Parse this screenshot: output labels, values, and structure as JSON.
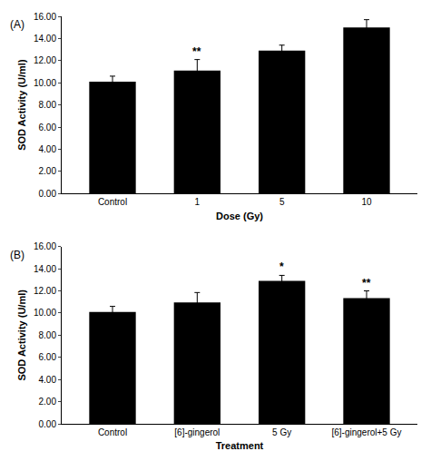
{
  "chart_data": [
    {
      "type": "bar",
      "label": "(A)",
      "x_label": "Dose (Gy)",
      "y_label": "SOD Activity (U/ml)",
      "categories": [
        "Control",
        "1",
        "5",
        "10"
      ],
      "values": [
        10.1,
        11.1,
        12.9,
        15.0
      ],
      "errors": [
        0.5,
        1.0,
        0.5,
        0.7
      ],
      "color": "#000000",
      "ylim": [
        0,
        16
      ],
      "yticks": [
        {
          "value": 0,
          "label": "0.00"
        },
        {
          "value": 2,
          "label": "2.00"
        },
        {
          "value": 4,
          "label": "4.00"
        },
        {
          "value": 6,
          "label": "6.00"
        },
        {
          "value": 8,
          "label": "8.00"
        },
        {
          "value": 10,
          "label": "10.00"
        },
        {
          "value": 12,
          "label": "12.00"
        },
        {
          "value": 14,
          "label": "14.00"
        },
        {
          "value": 16,
          "label": "16.00"
        }
      ],
      "grid": false,
      "annotations": [
        {
          "category": "1",
          "text": "**"
        }
      ]
    },
    {
      "type": "bar",
      "label": "(B)",
      "x_label": "Treatment",
      "y_label": "SOD Activity (U/ml)",
      "categories": [
        "Control",
        "[6]-gingerol",
        "5 Gy",
        "[6]-gingerol+5 Gy"
      ],
      "values": [
        10.1,
        10.95,
        12.9,
        11.35
      ],
      "errors": [
        0.5,
        0.9,
        0.5,
        0.65
      ],
      "color": "#000000",
      "ylim": [
        0,
        16
      ],
      "yticks": [
        {
          "value": 0,
          "label": "0.00"
        },
        {
          "value": 2,
          "label": "2.00"
        },
        {
          "value": 4,
          "label": "4.00"
        },
        {
          "value": 6,
          "label": "6.00"
        },
        {
          "value": 8,
          "label": "8.00"
        },
        {
          "value": 10,
          "label": "10.00"
        },
        {
          "value": 12,
          "label": "12.00"
        },
        {
          "value": 14,
          "label": "14.00"
        },
        {
          "value": 16,
          "label": "16.00"
        }
      ],
      "grid": false,
      "annotations": [
        {
          "category": "5 Gy",
          "text": "*"
        },
        {
          "category": "[6]-gingerol+5 Gy",
          "text": "**"
        }
      ]
    }
  ]
}
